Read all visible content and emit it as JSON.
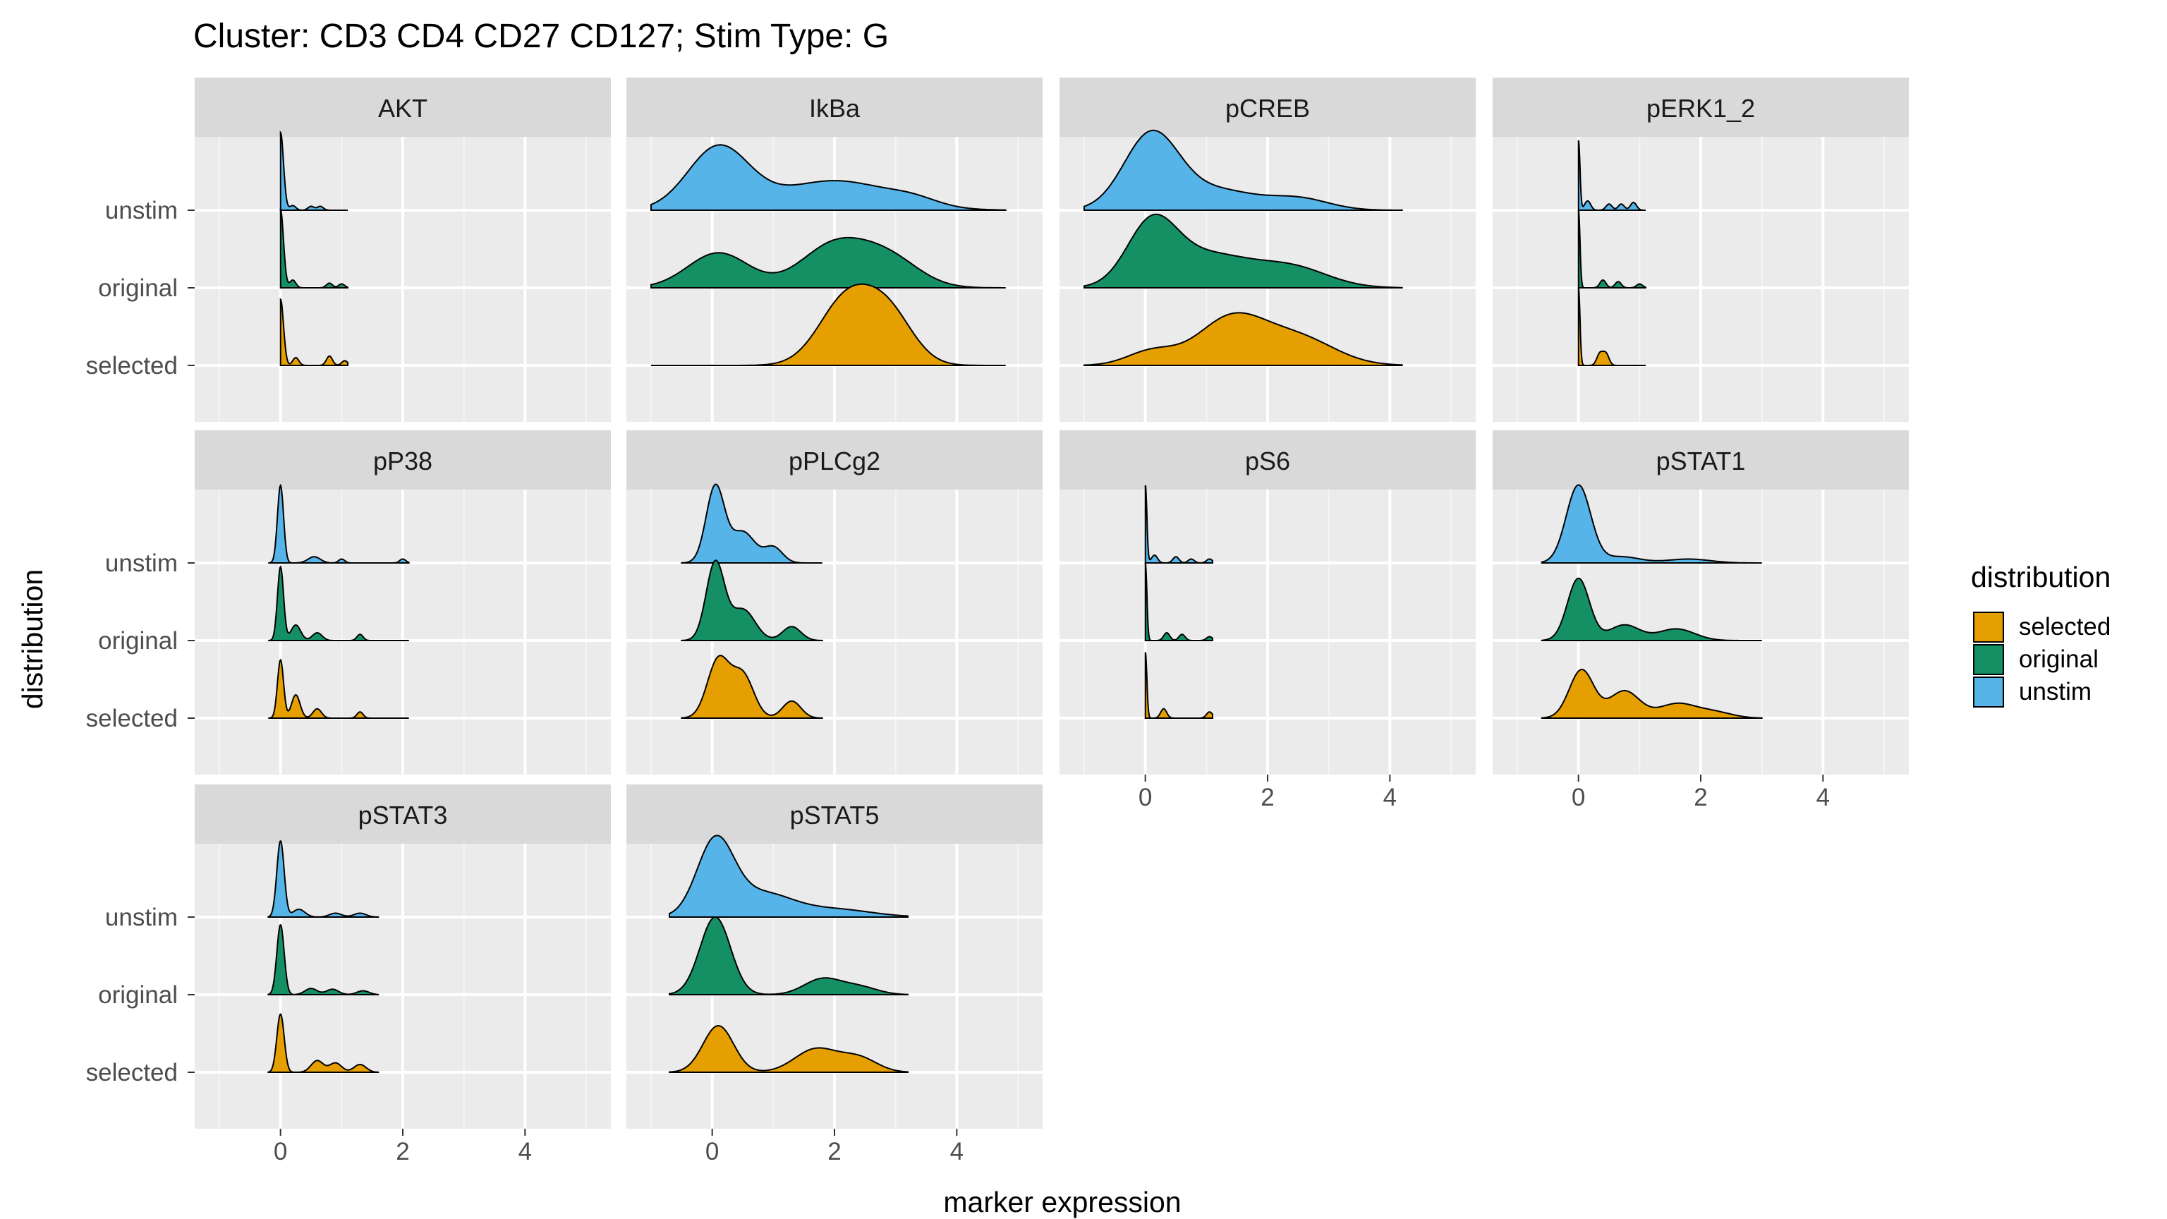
{
  "chart_data": {
    "type": "ridgeline",
    "title": "Cluster: CD3 CD4 CD27 CD127; Stim Type: G",
    "xlabel": "marker expression",
    "ylabel": "distribution",
    "xlim": [
      -1,
      5
    ],
    "x_ticks": [
      "0",
      "2",
      "4"
    ],
    "y_categories": [
      "unstim",
      "original",
      "selected"
    ],
    "grid": true,
    "legend": {
      "title": "distribution",
      "position": "right",
      "entries": [
        {
          "label": "selected",
          "color": "#E69F00"
        },
        {
          "label": "original",
          "color": "#159065"
        },
        {
          "label": "unstim",
          "color": "#56B4E9"
        }
      ]
    },
    "panels": [
      {
        "name": "AKT",
        "series": {
          "unstim": {
            "range": [
              0,
              1.1
            ],
            "peaks": [
              [
                0,
                0.05,
                1.0
              ],
              [
                0.2,
                0.05,
                0.06
              ],
              [
                0.5,
                0.05,
                0.05
              ],
              [
                0.65,
                0.05,
                0.05
              ]
            ]
          },
          "original": {
            "range": [
              0,
              1.1
            ],
            "peaks": [
              [
                0,
                0.05,
                1.0
              ],
              [
                0.2,
                0.05,
                0.1
              ],
              [
                0.8,
                0.05,
                0.06
              ],
              [
                1.0,
                0.05,
                0.05
              ]
            ]
          },
          "selected": {
            "range": [
              0,
              1.1
            ],
            "peaks": [
              [
                0,
                0.05,
                0.85
              ],
              [
                0.25,
                0.05,
                0.1
              ],
              [
                0.8,
                0.05,
                0.12
              ],
              [
                1.05,
                0.05,
                0.06
              ]
            ]
          }
        }
      },
      {
        "name": "IkBa",
        "series": {
          "unstim": {
            "range": [
              -1,
              4.8
            ],
            "peaks": [
              [
                0.1,
                0.5,
                0.8
              ],
              [
                2.0,
                0.9,
                0.38
              ],
              [
                3.3,
                0.4,
                0.08
              ]
            ]
          },
          "original": {
            "range": [
              -1,
              4.8
            ],
            "peaks": [
              [
                0.1,
                0.5,
                0.45
              ],
              [
                2.0,
                0.55,
                0.55
              ],
              [
                2.9,
                0.5,
                0.35
              ]
            ]
          },
          "selected": {
            "range": [
              -1,
              4.8
            ],
            "peaks": [
              [
                2.2,
                0.45,
                0.85
              ],
              [
                2.9,
                0.4,
                0.6
              ]
            ]
          }
        }
      },
      {
        "name": "pCREB",
        "series": {
          "unstim": {
            "range": [
              -1,
              4.2
            ],
            "peaks": [
              [
                0.1,
                0.45,
                0.98
              ],
              [
                1.2,
                0.6,
                0.25
              ],
              [
                2.5,
                0.5,
                0.15
              ]
            ]
          },
          "original": {
            "range": [
              -1,
              4.2
            ],
            "peaks": [
              [
                0.1,
                0.4,
                0.75
              ],
              [
                1.0,
                0.7,
                0.42
              ],
              [
                2.4,
                0.6,
                0.25
              ]
            ]
          },
          "selected": {
            "range": [
              -1,
              4.2
            ],
            "peaks": [
              [
                0.1,
                0.4,
                0.18
              ],
              [
                1.4,
                0.55,
                0.6
              ],
              [
                2.5,
                0.6,
                0.35
              ]
            ]
          }
        }
      },
      {
        "name": "pERK1_2",
        "series": {
          "unstim": {
            "range": [
              0,
              1.1
            ],
            "peaks": [
              [
                0,
                0.025,
                0.9
              ],
              [
                0.15,
                0.05,
                0.12
              ],
              [
                0.5,
                0.05,
                0.08
              ],
              [
                0.7,
                0.05,
                0.08
              ],
              [
                0.9,
                0.05,
                0.1
              ]
            ]
          },
          "original": {
            "range": [
              0,
              1.1
            ],
            "peaks": [
              [
                0,
                0.025,
                1.0
              ],
              [
                0.4,
                0.05,
                0.1
              ],
              [
                0.65,
                0.05,
                0.08
              ],
              [
                1.0,
                0.05,
                0.05
              ]
            ]
          },
          "selected": {
            "range": [
              0,
              1.1
            ],
            "peaks": [
              [
                0,
                0.025,
                1.0
              ],
              [
                0.35,
                0.05,
                0.15
              ],
              [
                0.45,
                0.05,
                0.15
              ]
            ]
          }
        }
      },
      {
        "name": "pP38",
        "series": {
          "unstim": {
            "range": [
              -0.2,
              2.1
            ],
            "peaks": [
              [
                0,
                0.05,
                1.0
              ],
              [
                0.55,
                0.1,
                0.08
              ],
              [
                1.0,
                0.05,
                0.05
              ],
              [
                2.0,
                0.05,
                0.05
              ]
            ]
          },
          "original": {
            "range": [
              -0.2,
              2.1
            ],
            "peaks": [
              [
                0,
                0.05,
                0.95
              ],
              [
                0.25,
                0.08,
                0.2
              ],
              [
                0.6,
                0.08,
                0.1
              ],
              [
                1.3,
                0.05,
                0.08
              ]
            ]
          },
          "selected": {
            "range": [
              -0.2,
              2.1
            ],
            "peaks": [
              [
                0,
                0.05,
                0.75
              ],
              [
                0.25,
                0.07,
                0.3
              ],
              [
                0.6,
                0.07,
                0.12
              ],
              [
                1.3,
                0.05,
                0.08
              ]
            ]
          }
        }
      },
      {
        "name": "pPLCg2",
        "series": {
          "unstim": {
            "range": [
              -0.5,
              1.8
            ],
            "peaks": [
              [
                0.05,
                0.15,
                0.98
              ],
              [
                0.5,
                0.2,
                0.4
              ],
              [
                1.0,
                0.15,
                0.2
              ]
            ]
          },
          "original": {
            "range": [
              -0.5,
              1.8
            ],
            "peaks": [
              [
                0.05,
                0.15,
                1.0
              ],
              [
                0.5,
                0.2,
                0.4
              ],
              [
                1.3,
                0.15,
                0.18
              ]
            ]
          },
          "selected": {
            "range": [
              -0.5,
              1.8
            ],
            "peaks": [
              [
                0.1,
                0.18,
                0.75
              ],
              [
                0.5,
                0.18,
                0.55
              ],
              [
                1.3,
                0.15,
                0.22
              ]
            ]
          }
        }
      },
      {
        "name": "pS6",
        "series": {
          "unstim": {
            "range": [
              0,
              1.1
            ],
            "peaks": [
              [
                0,
                0.025,
                1.0
              ],
              [
                0.15,
                0.05,
                0.1
              ],
              [
                0.5,
                0.05,
                0.08
              ],
              [
                0.75,
                0.05,
                0.05
              ],
              [
                1.05,
                0.05,
                0.05
              ]
            ]
          },
          "original": {
            "range": [
              0,
              1.1
            ],
            "peaks": [
              [
                0,
                0.025,
                1.0
              ],
              [
                0.35,
                0.05,
                0.1
              ],
              [
                0.6,
                0.05,
                0.08
              ],
              [
                1.05,
                0.05,
                0.05
              ]
            ]
          },
          "selected": {
            "range": [
              0,
              1.1
            ],
            "peaks": [
              [
                0,
                0.025,
                0.85
              ],
              [
                0.3,
                0.05,
                0.12
              ],
              [
                1.05,
                0.05,
                0.08
              ]
            ]
          }
        }
      },
      {
        "name": "pSTAT1",
        "series": {
          "unstim": {
            "range": [
              -0.6,
              3
            ],
            "peaks": [
              [
                0,
                0.2,
                1.0
              ],
              [
                0.7,
                0.3,
                0.08
              ],
              [
                1.8,
                0.35,
                0.05
              ]
            ]
          },
          "original": {
            "range": [
              -0.6,
              3
            ],
            "peaks": [
              [
                0,
                0.18,
                0.8
              ],
              [
                0.75,
                0.25,
                0.2
              ],
              [
                1.6,
                0.3,
                0.15
              ]
            ]
          },
          "selected": {
            "range": [
              -0.6,
              3
            ],
            "peaks": [
              [
                0.05,
                0.2,
                0.62
              ],
              [
                0.75,
                0.25,
                0.35
              ],
              [
                1.6,
                0.3,
                0.18
              ],
              [
                2.2,
                0.3,
                0.08
              ]
            ]
          }
        }
      },
      {
        "name": "pSTAT3",
        "series": {
          "unstim": {
            "range": [
              -0.2,
              1.6
            ],
            "peaks": [
              [
                0,
                0.06,
                0.98
              ],
              [
                0.3,
                0.1,
                0.1
              ],
              [
                0.9,
                0.1,
                0.05
              ],
              [
                1.3,
                0.1,
                0.05
              ]
            ]
          },
          "original": {
            "range": [
              -0.2,
              1.6
            ],
            "peaks": [
              [
                0,
                0.06,
                0.9
              ],
              [
                0.5,
                0.1,
                0.08
              ],
              [
                0.85,
                0.1,
                0.07
              ],
              [
                1.35,
                0.1,
                0.05
              ]
            ]
          },
          "selected": {
            "range": [
              -0.2,
              1.6
            ],
            "peaks": [
              [
                0,
                0.06,
                0.75
              ],
              [
                0.6,
                0.1,
                0.15
              ],
              [
                0.9,
                0.1,
                0.12
              ],
              [
                1.3,
                0.1,
                0.1
              ]
            ]
          }
        }
      },
      {
        "name": "pSTAT5",
        "series": {
          "unstim": {
            "range": [
              -0.7,
              3.2
            ],
            "peaks": [
              [
                0.05,
                0.3,
                0.95
              ],
              [
                0.8,
                0.5,
                0.3
              ],
              [
                2.0,
                0.6,
                0.1
              ]
            ]
          },
          "original": {
            "range": [
              -0.7,
              3.2
            ],
            "peaks": [
              [
                0.05,
                0.25,
                1.0
              ],
              [
                1.8,
                0.3,
                0.2
              ],
              [
                2.4,
                0.3,
                0.1
              ]
            ]
          },
          "selected": {
            "range": [
              -0.7,
              3.2
            ],
            "peaks": [
              [
                0.1,
                0.25,
                0.6
              ],
              [
                1.7,
                0.35,
                0.3
              ],
              [
                2.4,
                0.3,
                0.18
              ]
            ]
          }
        }
      }
    ]
  }
}
